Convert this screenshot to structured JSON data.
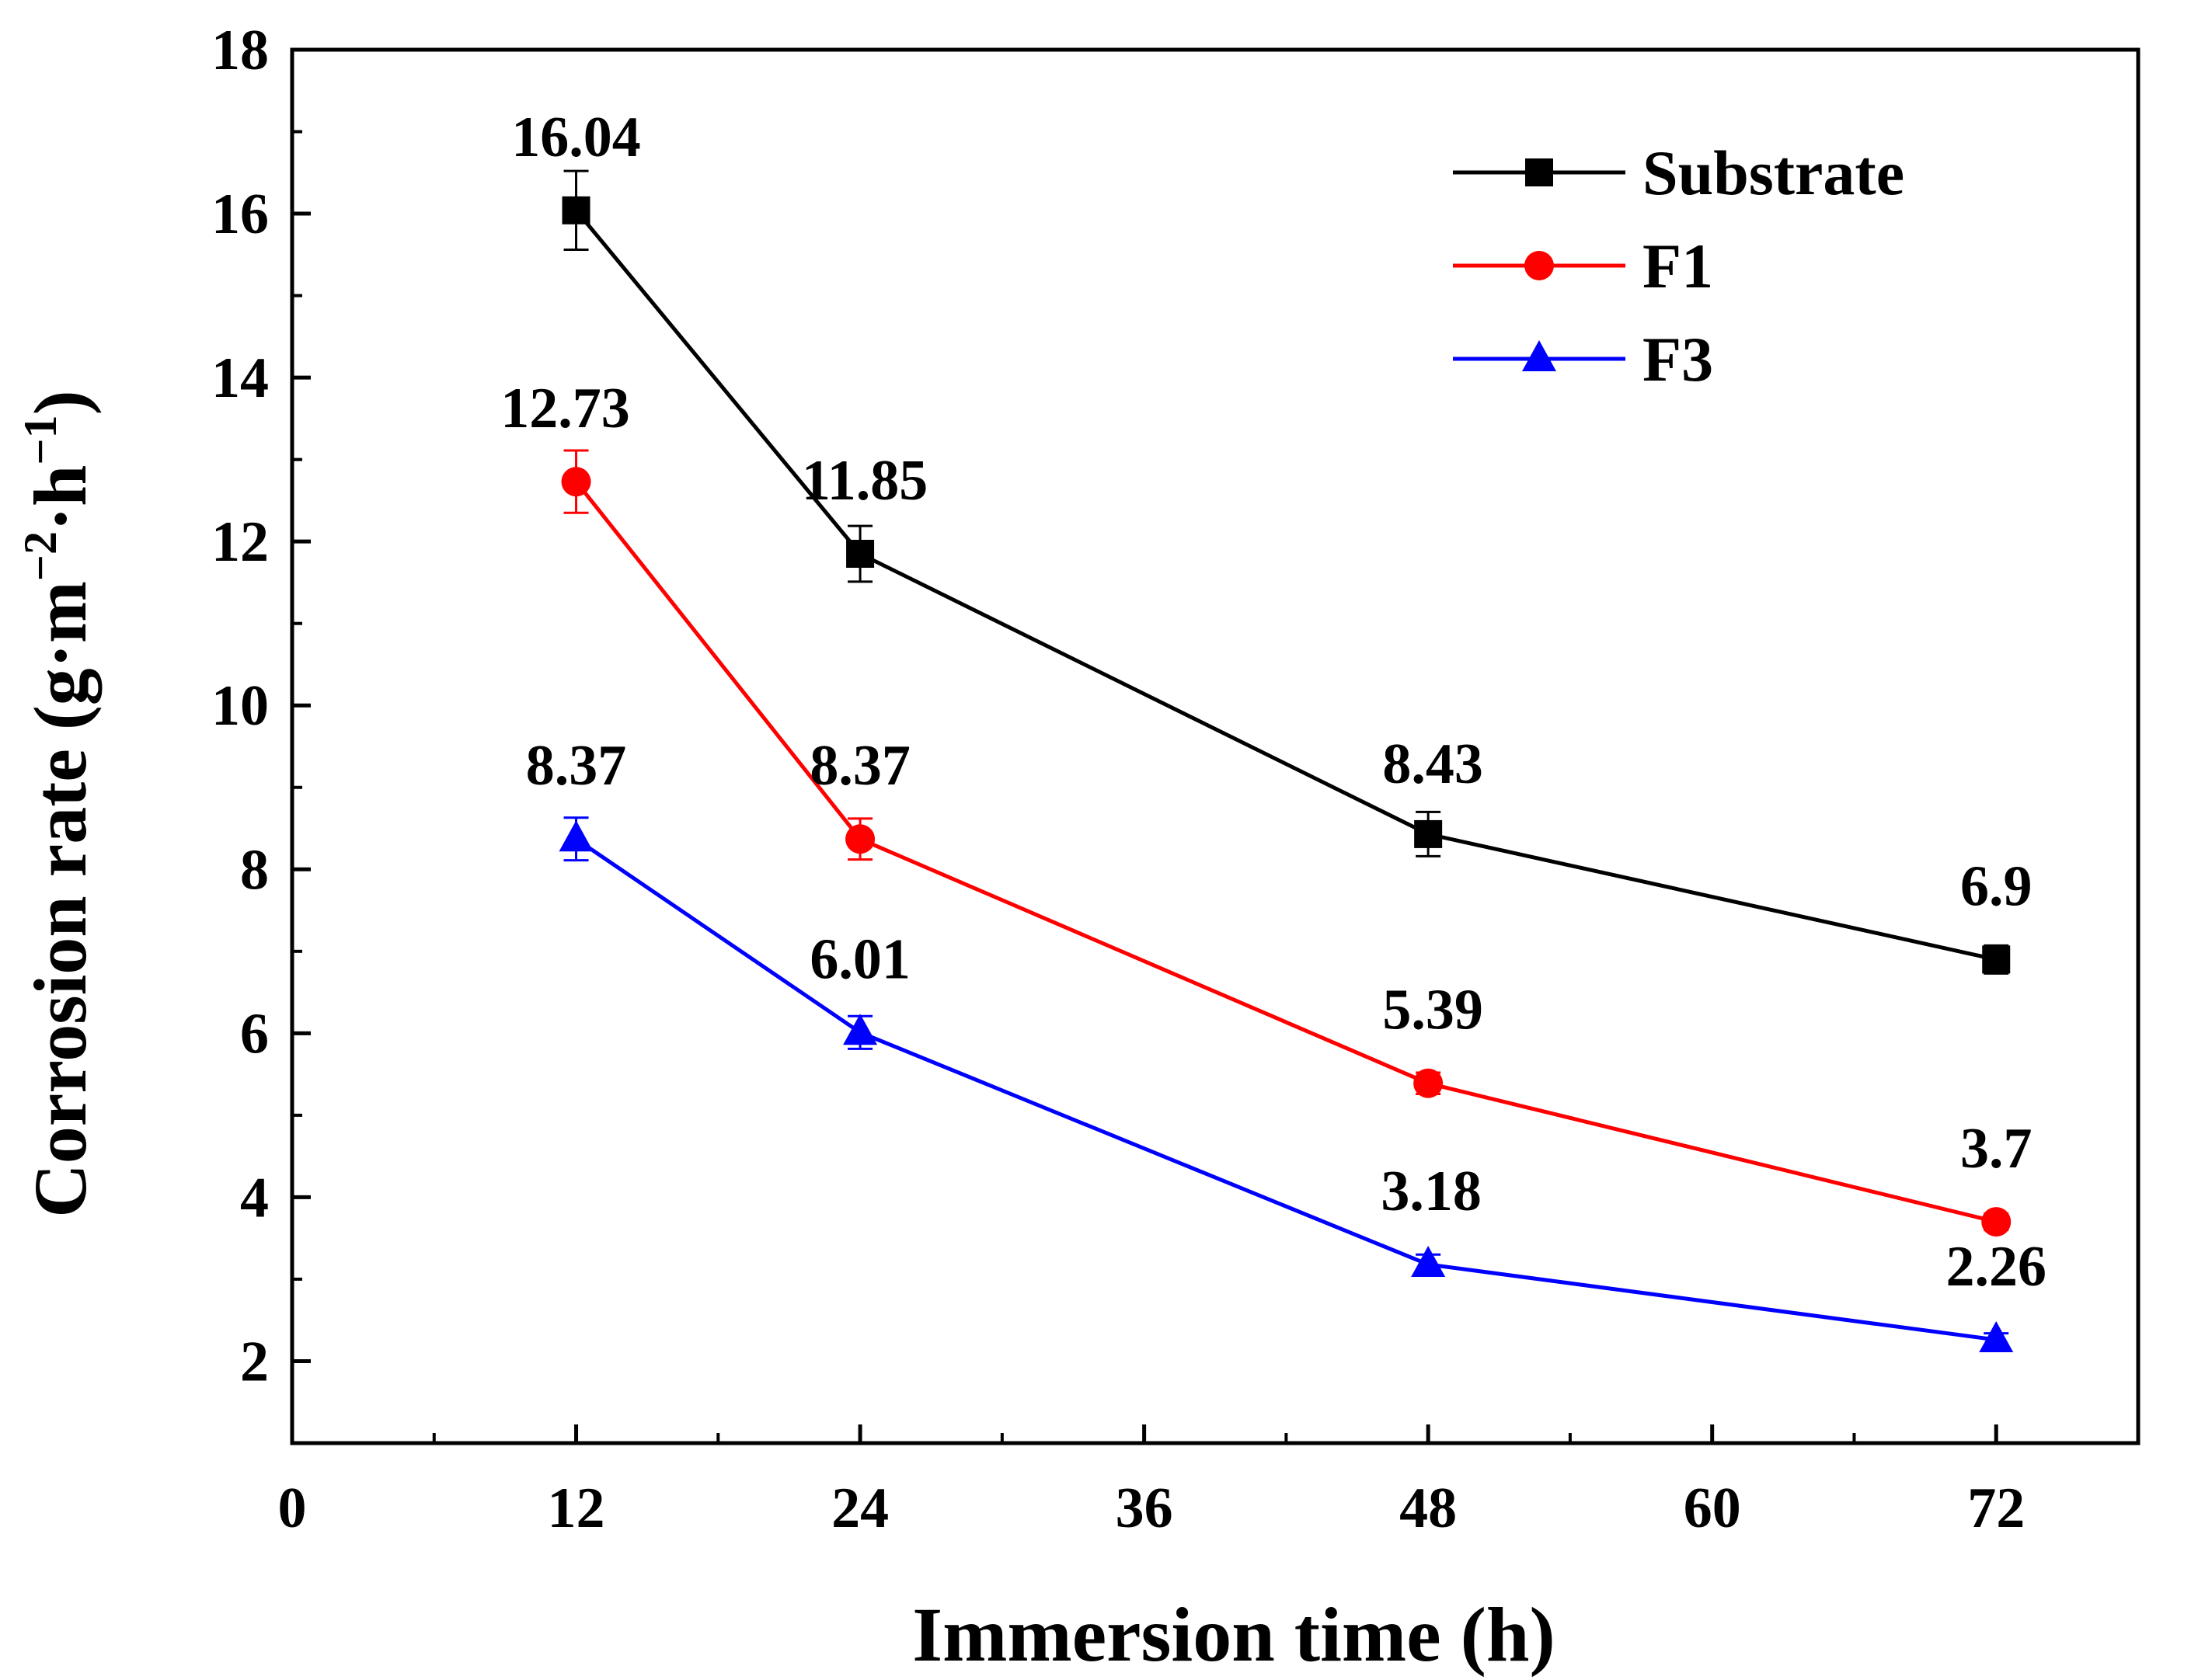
{
  "chart_data": {
    "type": "line",
    "title": "",
    "xlabel": "Immersion time (h)",
    "ylabel": {
      "main": "Corrosion rate (g·m",
      "sup1": "−2",
      "mid": "·h",
      "sup2": "−1",
      "end": ")"
    },
    "xlim": [
      0,
      78
    ],
    "ylim": [
      1,
      18
    ],
    "x_ticks": [
      0,
      12,
      24,
      36,
      48,
      60,
      72
    ],
    "y_ticks": [
      2,
      4,
      6,
      8,
      10,
      12,
      14,
      16,
      18
    ],
    "x": [
      12,
      24,
      48,
      72
    ],
    "legend_position": "top-right",
    "series": [
      {
        "name": "Substrate",
        "color": "#000000",
        "marker": "square",
        "values": [
          16.04,
          11.85,
          8.43,
          6.9
        ],
        "errors": [
          0.48,
          0.34,
          0.27,
          0.17
        ],
        "labels": [
          "16.04",
          "11.85",
          "8.43",
          "6.9"
        ]
      },
      {
        "name": "F1",
        "color": "#ff0000",
        "marker": "circle",
        "values": [
          12.73,
          8.37,
          5.39,
          3.7
        ],
        "errors": [
          0.38,
          0.25,
          0.13,
          0.1
        ],
        "labels": [
          "12.73",
          "8.37",
          "5.39",
          "3.7"
        ]
      },
      {
        "name": "F3",
        "color": "#0000ff",
        "marker": "triangle",
        "values": [
          8.37,
          6.01,
          3.18,
          2.26
        ],
        "errors": [
          0.26,
          0.2,
          0.12,
          0.08
        ],
        "labels": [
          "8.37",
          "6.01",
          "3.18",
          "2.26"
        ]
      }
    ]
  }
}
